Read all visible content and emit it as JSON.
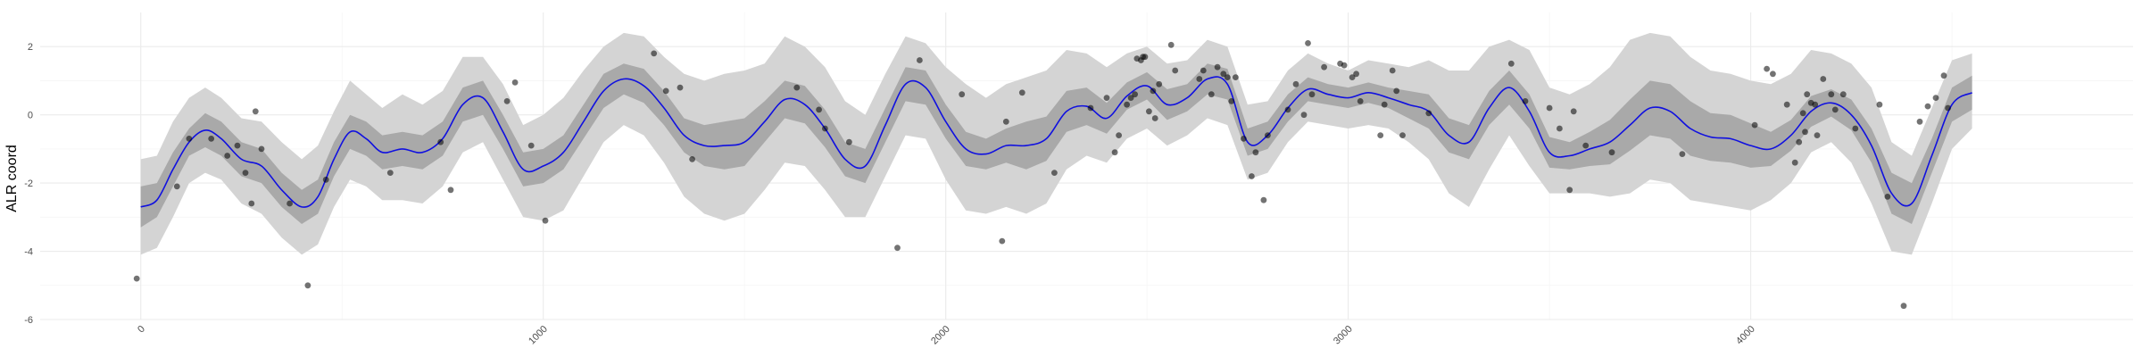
{
  "chart_data": {
    "type": "line",
    "title": "",
    "xlabel": "",
    "ylabel": "ALR coord",
    "xlim": [
      -250,
      4950
    ],
    "ylim": [
      -6,
      3
    ],
    "xticks": [
      0,
      1000,
      2000,
      3000,
      4000
    ],
    "xtick_labels": [
      "0",
      "1000",
      "2000",
      "3000",
      "4000"
    ],
    "yticks": [
      -6,
      -4,
      -2,
      0,
      2
    ],
    "ytick_labels": [
      "-6",
      "-4",
      "-2",
      "0",
      "2"
    ],
    "grid": true,
    "legend": "none",
    "colors": {
      "mean_line": "#1010e0",
      "inner_band": "#a9a9a9",
      "outer_band": "#d4d4d4",
      "points": "#5a5a5a",
      "grid": "#ebebeb"
    },
    "series": [
      {
        "kind": "posterior-mean",
        "x": [
          0,
          40,
          80,
          120,
          160,
          200,
          250,
          300,
          350,
          400,
          440,
          480,
          520,
          560,
          600,
          650,
          700,
          750,
          800,
          850,
          900,
          950,
          1000,
          1050,
          1100,
          1150,
          1200,
          1250,
          1300,
          1350,
          1400,
          1450,
          1500,
          1550,
          1600,
          1650,
          1700,
          1750,
          1800,
          1850,
          1900,
          1950,
          2000,
          2050,
          2100,
          2150,
          2200,
          2250,
          2300,
          2350,
          2400,
          2450,
          2500,
          2550,
          2600,
          2650,
          2700,
          2750,
          2800,
          2850,
          2900,
          2950,
          3000,
          3050,
          3100,
          3150,
          3200,
          3250,
          3300,
          3350,
          3400,
          3450,
          3500,
          3550,
          3600,
          3650,
          3700,
          3750,
          3800,
          3850,
          3900,
          3950,
          4000,
          4050,
          4100,
          4150,
          4200,
          4250,
          4300,
          4350,
          4400,
          4450,
          4500,
          4550
        ],
        "y": [
          -2.7,
          -2.5,
          -1.6,
          -0.8,
          -0.45,
          -0.7,
          -1.3,
          -1.5,
          -2.2,
          -2.7,
          -2.4,
          -1.3,
          -0.5,
          -0.7,
          -1.1,
          -1.0,
          -1.1,
          -0.7,
          0.3,
          0.5,
          -0.5,
          -1.6,
          -1.5,
          -1.1,
          -0.2,
          0.7,
          1.05,
          0.85,
          0.2,
          -0.6,
          -0.9,
          -0.9,
          -0.8,
          -0.2,
          0.45,
          0.3,
          -0.4,
          -1.3,
          -1.5,
          -0.3,
          0.9,
          0.8,
          -0.2,
          -1.0,
          -1.15,
          -0.9,
          -0.9,
          -0.7,
          0.1,
          0.25,
          -0.1,
          0.55,
          0.85,
          0.3,
          0.5,
          1.05,
          0.9,
          -0.8,
          -0.6,
          0.2,
          0.75,
          0.6,
          0.5,
          0.65,
          0.5,
          0.3,
          0.1,
          -0.6,
          -0.8,
          0.2,
          0.8,
          0.1,
          -1.1,
          -1.2,
          -1.0,
          -0.8,
          -0.3,
          0.2,
          0.1,
          -0.4,
          -0.65,
          -0.7,
          -0.9,
          -1.0,
          -0.6,
          0.1,
          0.35,
          0.0,
          -0.9,
          -2.3,
          -2.6,
          -1.2,
          0.3,
          0.65
        ]
      },
      {
        "kind": "inner-interval",
        "x": [
          0,
          40,
          80,
          120,
          160,
          200,
          250,
          300,
          350,
          400,
          440,
          480,
          520,
          560,
          600,
          650,
          700,
          750,
          800,
          850,
          900,
          950,
          1000,
          1050,
          1100,
          1150,
          1200,
          1250,
          1300,
          1350,
          1400,
          1450,
          1500,
          1550,
          1600,
          1650,
          1700,
          1750,
          1800,
          1850,
          1900,
          1950,
          2000,
          2050,
          2100,
          2150,
          2200,
          2250,
          2300,
          2350,
          2400,
          2450,
          2500,
          2550,
          2600,
          2650,
          2700,
          2750,
          2800,
          2850,
          2900,
          2950,
          3000,
          3050,
          3100,
          3150,
          3200,
          3250,
          3300,
          3350,
          3400,
          3450,
          3500,
          3550,
          3600,
          3650,
          3700,
          3750,
          3800,
          3850,
          3900,
          3950,
          4000,
          4050,
          4100,
          4150,
          4200,
          4250,
          4300,
          4350,
          4400,
          4450,
          4500,
          4550
        ],
        "lower": [
          -3.3,
          -3.0,
          -2.1,
          -1.2,
          -0.95,
          -1.2,
          -1.8,
          -2.0,
          -2.7,
          -3.2,
          -2.9,
          -1.8,
          -1.0,
          -1.2,
          -1.6,
          -1.5,
          -1.6,
          -1.2,
          -0.2,
          0.0,
          -1.0,
          -2.1,
          -2.0,
          -1.6,
          -0.7,
          0.2,
          0.6,
          0.35,
          -0.3,
          -1.1,
          -1.5,
          -1.6,
          -1.5,
          -0.8,
          -0.1,
          -0.25,
          -0.95,
          -1.8,
          -2.0,
          -0.8,
          0.4,
          0.3,
          -0.7,
          -1.5,
          -1.6,
          -1.4,
          -1.6,
          -1.35,
          -0.5,
          -0.3,
          -0.55,
          0.15,
          0.45,
          -0.15,
          0.1,
          0.6,
          0.45,
          -1.2,
          -1.0,
          -0.2,
          0.4,
          0.3,
          0.2,
          0.35,
          0.2,
          -0.1,
          -0.4,
          -1.1,
          -1.3,
          -0.3,
          0.3,
          -0.4,
          -1.55,
          -1.6,
          -1.5,
          -1.45,
          -1.05,
          -0.6,
          -0.7,
          -1.2,
          -1.35,
          -1.4,
          -1.55,
          -1.5,
          -1.05,
          -0.35,
          -0.05,
          -0.45,
          -1.4,
          -2.9,
          -3.2,
          -1.7,
          -0.2,
          0.15
        ],
        "upper": [
          -2.1,
          -2.0,
          -1.1,
          -0.4,
          0.05,
          -0.2,
          -0.8,
          -1.0,
          -1.7,
          -2.2,
          -1.9,
          -0.8,
          0.0,
          -0.2,
          -0.6,
          -0.5,
          -0.6,
          -0.2,
          0.8,
          1.0,
          0.0,
          -1.1,
          -1.0,
          -0.6,
          0.3,
          1.2,
          1.5,
          1.35,
          0.7,
          -0.1,
          -0.3,
          -0.2,
          -0.1,
          0.4,
          1.0,
          0.85,
          0.15,
          -0.8,
          -1.0,
          0.2,
          1.4,
          1.3,
          0.3,
          -0.5,
          -0.7,
          -0.4,
          -0.2,
          -0.05,
          0.7,
          0.8,
          0.35,
          0.95,
          1.25,
          0.75,
          0.9,
          1.5,
          1.35,
          -0.4,
          -0.2,
          0.6,
          1.1,
          0.9,
          0.8,
          0.95,
          0.8,
          0.7,
          0.6,
          -0.1,
          -0.3,
          0.7,
          1.3,
          0.6,
          -0.65,
          -0.8,
          -0.5,
          -0.15,
          0.45,
          1.0,
          0.9,
          0.4,
          0.05,
          0.0,
          -0.25,
          -0.5,
          -0.15,
          0.55,
          0.75,
          0.45,
          -0.4,
          -1.7,
          -2.0,
          -0.7,
          0.8,
          1.15
        ]
      },
      {
        "kind": "outer-interval",
        "x": [
          0,
          40,
          80,
          120,
          160,
          200,
          250,
          300,
          350,
          400,
          440,
          480,
          520,
          560,
          600,
          650,
          700,
          750,
          800,
          850,
          900,
          950,
          1000,
          1050,
          1100,
          1150,
          1200,
          1250,
          1300,
          1350,
          1400,
          1450,
          1500,
          1550,
          1600,
          1650,
          1700,
          1750,
          1800,
          1850,
          1900,
          1950,
          2000,
          2050,
          2100,
          2150,
          2200,
          2250,
          2300,
          2350,
          2400,
          2450,
          2500,
          2550,
          2600,
          2650,
          2700,
          2750,
          2800,
          2850,
          2900,
          2950,
          3000,
          3050,
          3100,
          3150,
          3200,
          3250,
          3300,
          3350,
          3400,
          3450,
          3500,
          3550,
          3600,
          3650,
          3700,
          3750,
          3800,
          3850,
          3900,
          3950,
          4000,
          4050,
          4100,
          4150,
          4200,
          4250,
          4300,
          4350,
          4400,
          4450,
          4500,
          4550
        ],
        "lower": [
          -4.1,
          -3.9,
          -3.0,
          -2.0,
          -1.7,
          -1.9,
          -2.6,
          -2.9,
          -3.6,
          -4.1,
          -3.8,
          -2.7,
          -1.9,
          -2.1,
          -2.5,
          -2.5,
          -2.6,
          -2.1,
          -1.1,
          -0.8,
          -1.9,
          -3.0,
          -3.1,
          -2.8,
          -1.8,
          -0.8,
          -0.3,
          -0.6,
          -1.4,
          -2.4,
          -2.9,
          -3.1,
          -2.9,
          -2.2,
          -1.4,
          -1.5,
          -2.2,
          -3.0,
          -3.0,
          -1.8,
          -0.6,
          -0.7,
          -1.9,
          -2.8,
          -2.9,
          -2.7,
          -2.9,
          -2.6,
          -1.6,
          -1.2,
          -1.4,
          -0.7,
          -0.4,
          -0.9,
          -0.6,
          -0.1,
          -0.3,
          -1.9,
          -1.7,
          -0.8,
          -0.2,
          -0.3,
          -0.4,
          -0.3,
          -0.4,
          -0.8,
          -1.3,
          -2.3,
          -2.7,
          -1.6,
          -0.6,
          -1.5,
          -2.3,
          -2.3,
          -2.3,
          -2.4,
          -2.3,
          -1.9,
          -2.0,
          -2.5,
          -2.6,
          -2.7,
          -2.8,
          -2.5,
          -2.0,
          -1.1,
          -0.8,
          -1.4,
          -2.6,
          -4.0,
          -4.1,
          -2.6,
          -1.0,
          -0.4
        ],
        "upper": [
          -1.3,
          -1.2,
          -0.2,
          0.5,
          0.8,
          0.5,
          -0.1,
          -0.2,
          -0.8,
          -1.3,
          -0.9,
          0.1,
          1.0,
          0.6,
          0.2,
          0.6,
          0.3,
          0.7,
          1.7,
          1.7,
          0.9,
          -0.3,
          0.0,
          0.5,
          1.3,
          2.0,
          2.4,
          2.3,
          1.7,
          1.2,
          1.0,
          1.2,
          1.3,
          1.5,
          2.3,
          2.0,
          1.4,
          0.4,
          0.0,
          1.2,
          2.3,
          2.1,
          1.4,
          0.9,
          0.5,
          0.9,
          1.1,
          1.3,
          1.9,
          1.8,
          1.4,
          1.8,
          2.0,
          1.5,
          1.6,
          2.2,
          2.0,
          0.3,
          0.4,
          1.3,
          1.8,
          1.5,
          1.3,
          1.6,
          1.5,
          1.4,
          1.6,
          1.3,
          1.3,
          2.0,
          2.2,
          1.9,
          0.8,
          0.6,
          0.9,
          1.4,
          2.2,
          2.4,
          2.3,
          1.7,
          1.3,
          1.2,
          1.0,
          0.9,
          1.2,
          1.9,
          1.8,
          1.5,
          0.8,
          -0.8,
          -1.2,
          0.2,
          1.6,
          1.8
        ]
      },
      {
        "kind": "observations",
        "x": [
          -10,
          90,
          120,
          175,
          215,
          240,
          260,
          275,
          285,
          300,
          370,
          415,
          460,
          620,
          745,
          770,
          910,
          930,
          970,
          1005,
          1275,
          1305,
          1340,
          1370,
          1630,
          1685,
          1700,
          1760,
          1880,
          1935,
          2040,
          2140,
          2150,
          2190,
          2270,
          2360,
          2400,
          2420,
          2430,
          2450,
          2460,
          2470,
          2475,
          2485,
          2490,
          2495,
          2505,
          2515,
          2520,
          2530,
          2560,
          2570,
          2630,
          2640,
          2660,
          2675,
          2690,
          2700,
          2710,
          2720,
          2740,
          2760,
          2770,
          2790,
          2800,
          2850,
          2870,
          2890,
          2900,
          2910,
          2940,
          2980,
          2990,
          3010,
          3020,
          3030,
          3080,
          3090,
          3110,
          3120,
          3135,
          3200,
          3405,
          3440,
          3500,
          3525,
          3550,
          3560,
          3590,
          3655,
          3830,
          4010,
          4040,
          4055,
          4090,
          4110,
          4120,
          4130,
          4135,
          4140,
          4150,
          4160,
          4165,
          4180,
          4200,
          4210,
          4230,
          4260,
          4320,
          4340,
          4380,
          4420,
          4440,
          4460,
          4480,
          4490
        ],
        "y": [
          -4.8,
          -2.1,
          -0.7,
          -0.7,
          -1.2,
          -0.9,
          -1.7,
          -2.6,
          0.1,
          -1.0,
          -2.6,
          -5.0,
          -1.9,
          -1.7,
          -0.8,
          -2.2,
          0.4,
          0.95,
          -0.9,
          -3.1,
          1.8,
          0.7,
          0.8,
          -1.3,
          0.8,
          0.15,
          -0.4,
          -0.8,
          -3.9,
          1.6,
          0.6,
          -3.7,
          -0.2,
          0.65,
          -1.7,
          0.2,
          0.5,
          -1.1,
          -0.6,
          0.3,
          0.5,
          0.6,
          1.65,
          1.6,
          1.7,
          1.7,
          0.1,
          0.7,
          -0.1,
          0.9,
          2.05,
          1.3,
          1.05,
          1.3,
          0.6,
          1.4,
          1.2,
          1.1,
          0.4,
          1.1,
          -0.7,
          -1.8,
          -1.1,
          -2.5,
          -0.6,
          0.15,
          0.9,
          0.0,
          2.1,
          0.6,
          1.4,
          1.5,
          1.45,
          1.1,
          1.2,
          0.4,
          -0.6,
          0.3,
          1.3,
          0.7,
          -0.6,
          0.05,
          1.5,
          0.4,
          0.2,
          -0.4,
          -2.2,
          0.1,
          -0.9,
          -1.1,
          -1.15,
          -0.3,
          1.35,
          1.2,
          0.3,
          -1.4,
          -0.8,
          0.05,
          -0.5,
          0.6,
          0.35,
          0.3,
          -0.6,
          1.05,
          0.6,
          0.15,
          0.6,
          -0.4,
          0.3,
          -2.4,
          -5.6,
          -0.2,
          0.25,
          0.5,
          1.15,
          0.2
        ]
      }
    ]
  }
}
